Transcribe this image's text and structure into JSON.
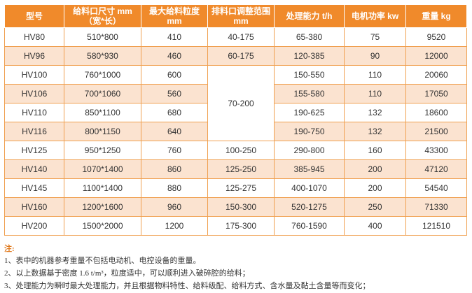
{
  "table": {
    "headers": [
      "型号",
      "给料口尺寸 mm\n（宽*长）",
      "最大给料粒度\nmm",
      "排料口调整范围\nmm",
      "处理能力 t/h",
      "电机功率 kw",
      "重量 kg"
    ],
    "rows": [
      {
        "model": "HV80",
        "feed": "510*800",
        "max": "410",
        "range": "40-175",
        "capacity": "65-380",
        "power": "75",
        "weight": "9520"
      },
      {
        "model": "HV96",
        "feed": "580*930",
        "max": "460",
        "range": "60-175",
        "capacity": "120-385",
        "power": "90",
        "weight": "12000"
      },
      {
        "model": "HV100",
        "feed": "760*1000",
        "max": "600",
        "range": "70-200",
        "capacity": "150-550",
        "power": "110",
        "weight": "20060"
      },
      {
        "model": "HV106",
        "feed": "700*1060",
        "max": "560",
        "range": null,
        "capacity": "155-580",
        "power": "110",
        "weight": "17050"
      },
      {
        "model": "HV110",
        "feed": "850*1100",
        "max": "680",
        "range": null,
        "capacity": "190-625",
        "power": "132",
        "weight": "18600"
      },
      {
        "model": "HV116",
        "feed": "800*1150",
        "max": "640",
        "range": null,
        "capacity": "190-750",
        "power": "132",
        "weight": "21500"
      },
      {
        "model": "HV125",
        "feed": "950*1250",
        "max": "760",
        "range": "100-250",
        "capacity": "290-800",
        "power": "160",
        "weight": "43300"
      },
      {
        "model": "HV140",
        "feed": "1070*1400",
        "max": "860",
        "range": "125-250",
        "capacity": "385-945",
        "power": "200",
        "weight": "47120"
      },
      {
        "model": "HV145",
        "feed": "1100*1400",
        "max": "880",
        "range": "125-275",
        "capacity": "400-1070",
        "power": "200",
        "weight": "54540"
      },
      {
        "model": "HV160",
        "feed": "1200*1600",
        "max": "960",
        "range": "150-300",
        "capacity": "520-1275",
        "power": "250",
        "weight": "71330"
      },
      {
        "model": "HV200",
        "feed": "1500*2000",
        "max": "1200",
        "range": "175-300",
        "capacity": "760-1590",
        "power": "400",
        "weight": "121510"
      }
    ],
    "merged_range_rowspan": 4
  },
  "notes": {
    "title": "注:",
    "lines": [
      "1、表中的机器参考重量不包括电动机、电控设备的重量。",
      "2、以上数据基于密度 1.6 t/m³，粒度适中，可以顺利进入破碎腔的给料；",
      "3、处理能力为瞬时最大处理能力，并且根据物料特性、给料级配、给料方式、含水量及黏土含量等而变化；"
    ]
  },
  "colors": {
    "header_bg": "#f08a2b",
    "alt_row_bg": "#fbe3d0",
    "border": "#f0a050",
    "note_title": "#e07a1e"
  }
}
